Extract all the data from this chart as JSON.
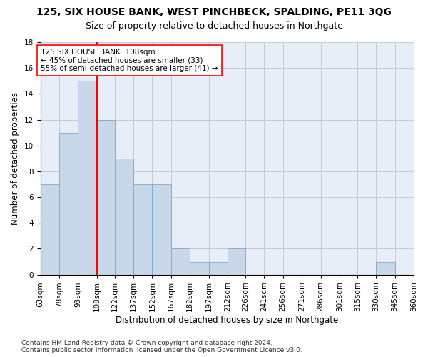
{
  "title": "125, SIX HOUSE BANK, WEST PINCHBECK, SPALDING, PE11 3QG",
  "subtitle": "Size of property relative to detached houses in Northgate",
  "xlabel": "Distribution of detached houses by size in Northgate",
  "ylabel": "Number of detached properties",
  "bar_color": "#c8d8ea",
  "bar_edge_color": "#7aaac8",
  "grid_color": "#c8c8d0",
  "background_color": "#e8eef8",
  "vline_color": "red",
  "vline_x": 108,
  "annotation_text": "125 SIX HOUSE BANK: 108sqm\n← 45% of detached houses are smaller (33)\n55% of semi-detached houses are larger (41) →",
  "bin_edges": [
    63,
    78,
    93,
    108,
    122,
    137,
    152,
    167,
    182,
    197,
    212,
    226,
    241,
    256,
    271,
    286,
    301,
    315,
    330,
    345,
    360
  ],
  "bar_heights": [
    7,
    11,
    15,
    12,
    9,
    7,
    7,
    2,
    1,
    1,
    2,
    0,
    0,
    0,
    0,
    0,
    0,
    0,
    1,
    0
  ],
  "ylim": [
    0,
    18
  ],
  "yticks": [
    0,
    2,
    4,
    6,
    8,
    10,
    12,
    14,
    16,
    18
  ],
  "footer_text": "Contains HM Land Registry data © Crown copyright and database right 2024.\nContains public sector information licensed under the Open Government Licence v3.0.",
  "title_fontsize": 10,
  "subtitle_fontsize": 9,
  "axis_label_fontsize": 8.5,
  "tick_fontsize": 7.5,
  "annotation_fontsize": 7.5,
  "footer_fontsize": 6.5
}
